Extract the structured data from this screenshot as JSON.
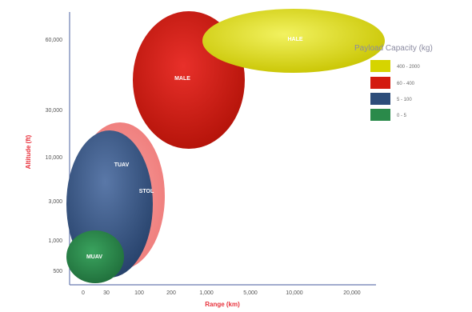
{
  "chart_data": {
    "type": "bubble",
    "title": "",
    "xlabel": "Range (km)",
    "ylabel": "Altitude (ft)",
    "x_ticks": [
      "0",
      "30",
      "100",
      "200",
      "1,000",
      "5,000",
      "10,000",
      "20,000"
    ],
    "y_ticks": [
      "500",
      "1,000",
      "3,000",
      "10,000",
      "30,000",
      "60,000"
    ],
    "grid": false,
    "legend": {
      "title": "Payload Capacity (kg)",
      "placement": "top-right",
      "entries": [
        {
          "label": "400 - 2000",
          "color": "#d6d400"
        },
        {
          "label": "60 - 400",
          "color": "#d31b10"
        },
        {
          "label": "5 - 100",
          "color": "#2d4d7a"
        },
        {
          "label": "0 - 5",
          "color": "#2a8a4a"
        }
      ]
    },
    "series": [
      {
        "name": "0 - 5",
        "color": "#2a8a4a",
        "bubbles": [
          {
            "label": "MUAV",
            "x": "30",
            "y": "500"
          }
        ]
      },
      {
        "name": "5 - 100",
        "color": "#2d4d7a",
        "bubbles": [
          {
            "label": "TUAV",
            "x": "30",
            "y": "10,000"
          }
        ]
      },
      {
        "name": "",
        "color": "#f08080",
        "bubbles": [
          {
            "label": "STOL",
            "x": "100",
            "y": "3,000"
          }
        ]
      },
      {
        "name": "60 - 400",
        "color": "#d31b10",
        "bubbles": [
          {
            "label": "MALE",
            "x": "1,000",
            "y": "30,000"
          }
        ]
      },
      {
        "name": "400 - 2000",
        "color": "#d6d400",
        "bubbles": [
          {
            "label": "HALE",
            "x": "10,000",
            "y": "60,000"
          }
        ]
      }
    ]
  }
}
